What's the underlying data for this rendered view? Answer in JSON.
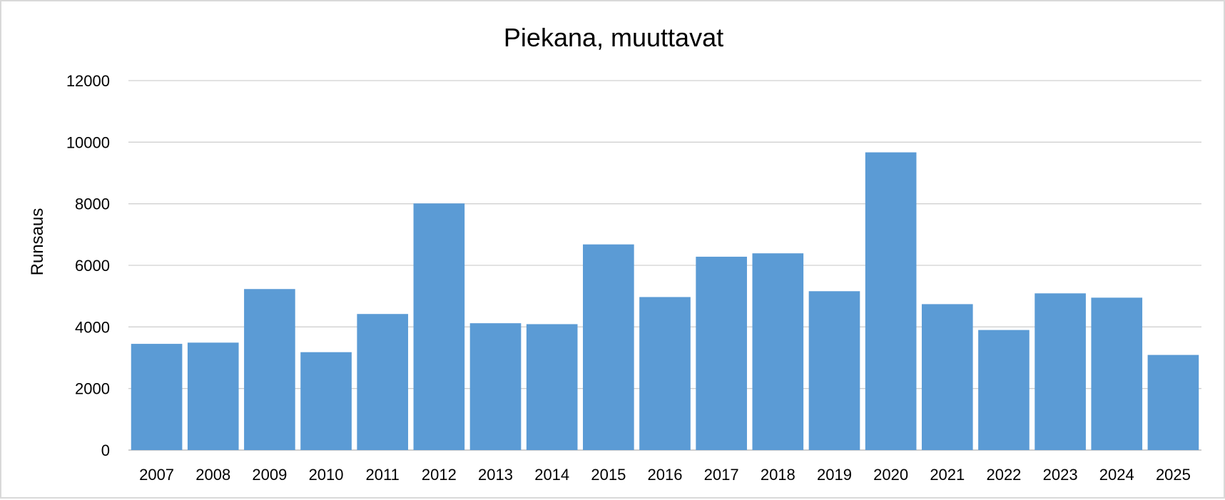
{
  "chart_data": {
    "type": "bar",
    "title": "Piekana, muuttavat",
    "xlabel": "",
    "ylabel": "Runsaus",
    "ylim": [
      0,
      12000
    ],
    "yticks": [
      "0",
      "2000",
      "4000",
      "6000",
      "8000",
      "10000",
      "12000"
    ],
    "grid": true,
    "legend": "none",
    "bar_color": "#5b9bd5",
    "categories": [
      "2007",
      "2008",
      "2009",
      "2010",
      "2011",
      "2012",
      "2013",
      "2014",
      "2015",
      "2016",
      "2017",
      "2018",
      "2019",
      "2020",
      "2021",
      "2022",
      "2023",
      "2024",
      "2025"
    ],
    "values": [
      3450,
      3490,
      5230,
      3180,
      4420,
      8010,
      4120,
      4090,
      6680,
      4970,
      6280,
      6390,
      5160,
      9670,
      4740,
      3900,
      5090,
      4950,
      3090
    ]
  }
}
